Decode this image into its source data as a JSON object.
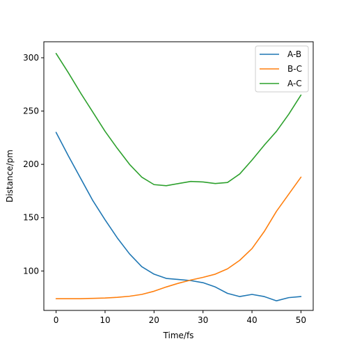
{
  "chart_data": {
    "type": "line",
    "title": "",
    "xlabel": "Time/fs",
    "ylabel": "Distance/pm",
    "xlim": [
      -2.5,
      52.5
    ],
    "ylim": [
      63,
      315
    ],
    "xticks": [
      0,
      10,
      20,
      30,
      40,
      50
    ],
    "yticks": [
      100,
      150,
      200,
      250,
      300
    ],
    "grid": false,
    "legend_position": "top-right",
    "x": [
      0,
      2.5,
      5,
      7.5,
      10,
      12.5,
      15,
      17.5,
      20,
      22.5,
      25,
      27.5,
      30,
      32.5,
      35,
      37.5,
      40,
      42.5,
      45,
      47.5,
      50
    ],
    "series": [
      {
        "name": "A-B",
        "color": "#1f77b4",
        "values": [
          230,
          208,
          187,
          166,
          148,
          131,
          116,
          104,
          97,
          93,
          92,
          91,
          89,
          85,
          79,
          76,
          78,
          76,
          72,
          75,
          76
        ]
      },
      {
        "name": "B-C",
        "color": "#ff7f0e",
        "values": [
          74,
          74,
          74,
          74.3,
          74.6,
          75.3,
          76.3,
          78,
          81,
          85,
          88.5,
          91.5,
          94,
          97,
          102,
          110,
          121,
          137,
          156,
          172,
          188
        ]
      },
      {
        "name": "A-C",
        "color": "#2ca02c",
        "values": [
          304,
          286,
          267,
          249,
          231,
          215,
          200,
          188,
          181,
          180,
          182,
          184,
          183.5,
          182,
          183,
          191,
          204,
          218,
          231,
          247,
          265
        ]
      }
    ]
  }
}
